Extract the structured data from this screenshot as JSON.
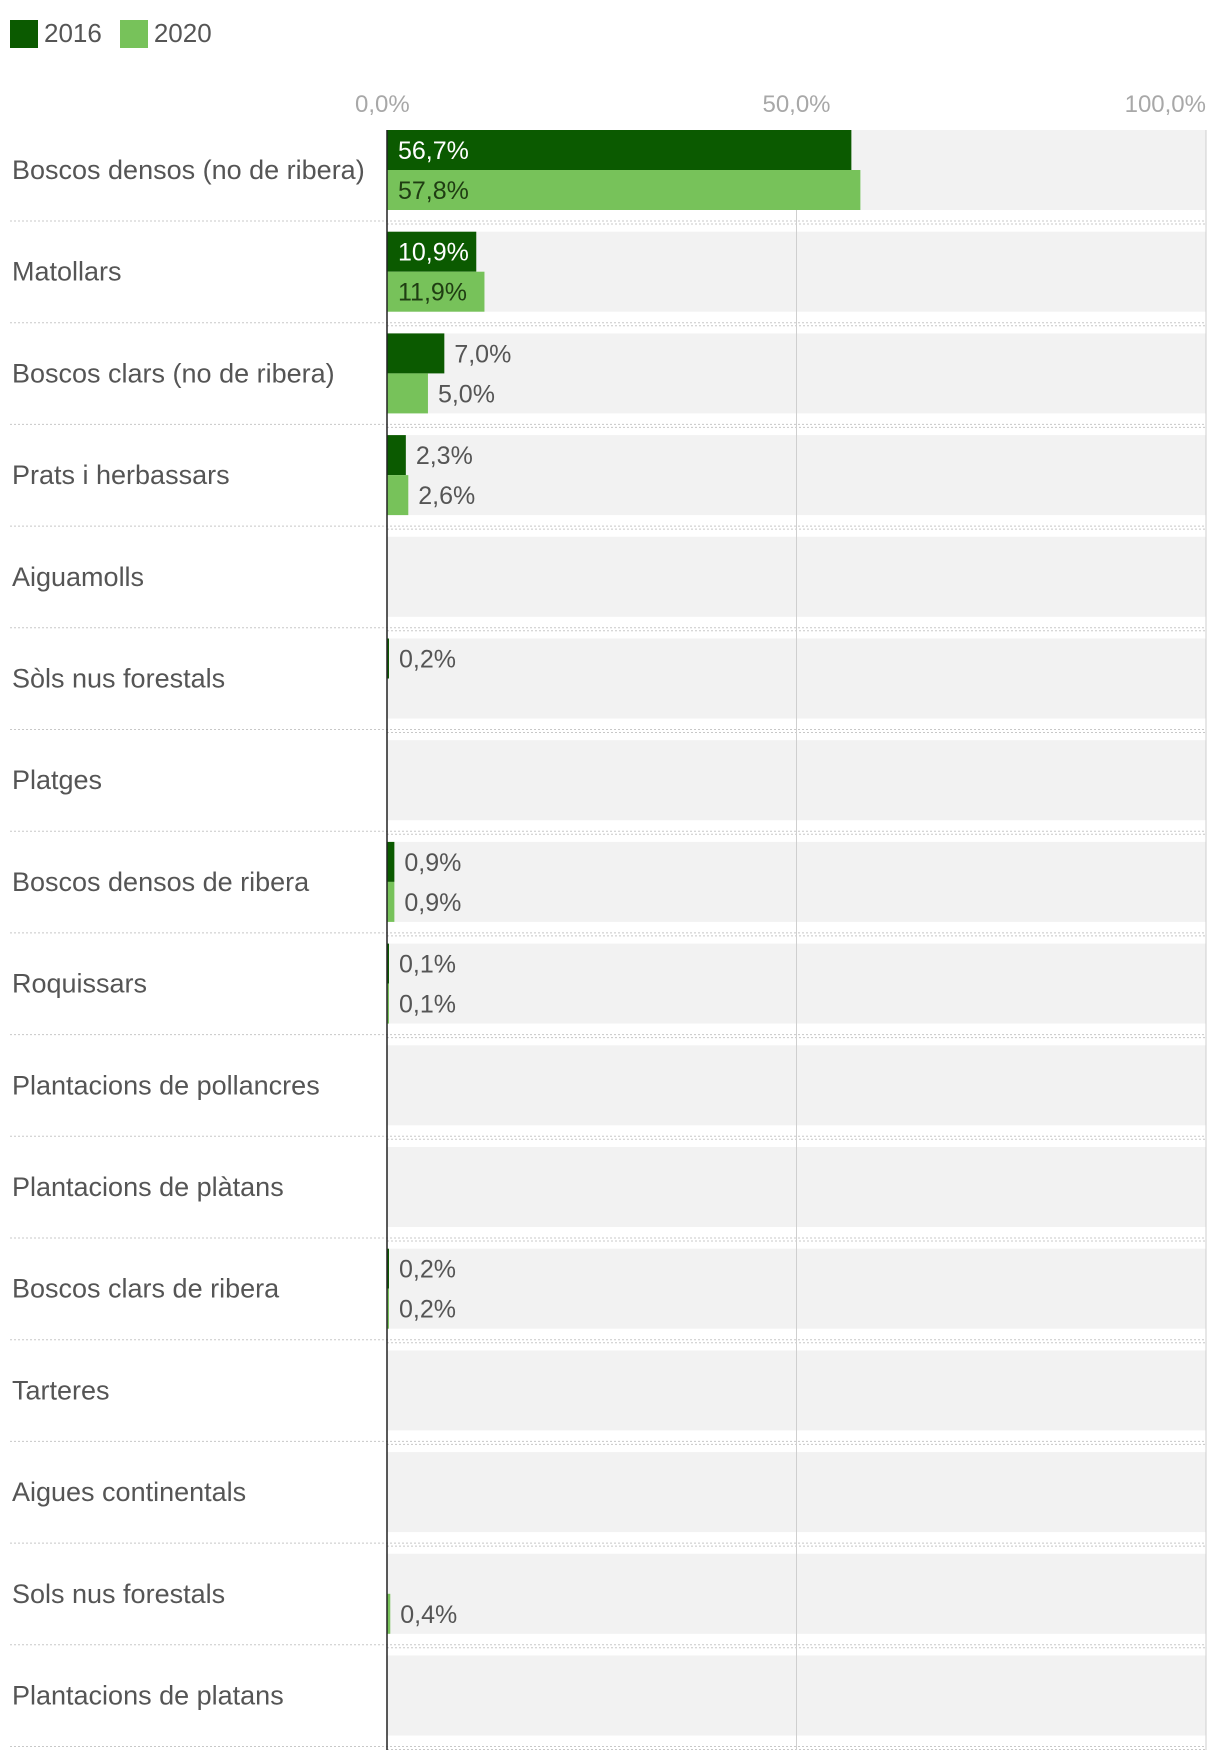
{
  "chart_data": {
    "type": "bar",
    "orientation": "horizontal",
    "xlim": [
      0,
      100
    ],
    "ticks": [
      {
        "value": 0,
        "label": "0,0%"
      },
      {
        "value": 50,
        "label": "50,0%"
      },
      {
        "value": 100,
        "label": "100,0%"
      }
    ],
    "legend_position": "top-left",
    "categories": [
      "Boscos densos (no de ribera)",
      "Matollars",
      "Boscos clars (no de ribera)",
      "Prats i herbassars",
      "Aiguamolls",
      "Sòls nus forestals",
      "Platges",
      "Boscos densos de ribera",
      "Roquissars",
      "Plantacions de pollancres",
      "Plantacions de plàtans",
      "Boscos clars de ribera",
      "Tarteres",
      "Aigues continentals",
      "Sols nus forestals",
      "Plantacions de platans"
    ],
    "series": [
      {
        "name": "2016",
        "color": "#0b5a00",
        "values": [
          56.7,
          10.9,
          7.0,
          2.3,
          null,
          0.2,
          null,
          0.9,
          0.1,
          null,
          null,
          0.2,
          null,
          null,
          null,
          null
        ],
        "labels": [
          "56,7%",
          "10,9%",
          "7,0%",
          "2,3%",
          "",
          "0,2%",
          "",
          "0,9%",
          "0,1%",
          "",
          "",
          "0,2%",
          "",
          "",
          "",
          ""
        ]
      },
      {
        "name": "2020",
        "color": "#77c25a",
        "values": [
          57.8,
          11.9,
          5.0,
          2.6,
          null,
          null,
          null,
          0.9,
          0.1,
          null,
          null,
          0.2,
          null,
          null,
          0.4,
          null
        ],
        "labels": [
          "57,8%",
          "11,9%",
          "5,0%",
          "2,6%",
          "",
          "",
          "",
          "0,9%",
          "0,1%",
          "",
          "",
          "0,2%",
          "",
          "",
          "0,4%",
          ""
        ]
      }
    ]
  }
}
